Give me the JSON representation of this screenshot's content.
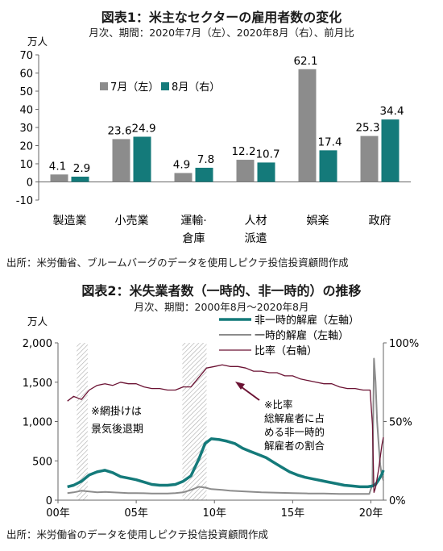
{
  "chart_data": [
    {
      "type": "bar",
      "title": "図表1：米主なセクターの雇用者数の変化",
      "subtitle": "月次、期間：2020年7月（左）、2020年8月（右）、前月比",
      "unit_label": "万人",
      "ylim": [
        -10,
        70
      ],
      "yticks": [
        -10,
        0,
        10,
        20,
        30,
        40,
        50,
        60,
        70
      ],
      "categories": [
        "製造業",
        "小売業",
        "運輸・倉庫",
        "人材派遣",
        "娯楽",
        "政府"
      ],
      "category_lines": [
        [
          "製造業"
        ],
        [
          "小売業"
        ],
        [
          "運輸·",
          "倉庫"
        ],
        [
          "人材",
          "派遣"
        ],
        [
          "娯楽"
        ],
        [
          "政府"
        ]
      ],
      "series": [
        {
          "name": "7月（左）",
          "color": "#8c8c8c",
          "values": [
            4.1,
            23.6,
            4.9,
            12.2,
            62.1,
            25.3
          ],
          "labels": [
            "4.1",
            "23.6",
            "4.9",
            "12.2",
            "62.1",
            "25.3"
          ]
        },
        {
          "name": "8月（右）",
          "color": "#147a7a",
          "values": [
            2.9,
            24.9,
            7.8,
            10.7,
            17.4,
            34.4
          ],
          "labels": [
            "2.9",
            "24.9",
            "7.8",
            "10.7",
            "17.4",
            "34.4"
          ]
        }
      ],
      "legend_placement": "top-left",
      "grid": false,
      "source": "出所：米労働省、ブルームバーグのデータを使用しピクテ投信投資顧問作成"
    },
    {
      "type": "line",
      "title": "図表2：米失業者数（一時的、非一時的）の推移",
      "subtitle": "月次、期間：2000年8月～2020年8月",
      "left_unit_label": "万人",
      "ylim_left": [
        0,
        2000
      ],
      "yticks_left": [
        "0",
        "500",
        "1,000",
        "1,500",
        "2,000"
      ],
      "yticks_left_values": [
        0,
        500,
        1000,
        1500,
        2000
      ],
      "ylim_right": [
        0,
        100
      ],
      "yticks_right": [
        "0%",
        "50%",
        "100%"
      ],
      "yticks_right_values": [
        0,
        50,
        100
      ],
      "xlim": [
        2000,
        2020.8
      ],
      "xticks": [
        "00年",
        "05年",
        "10年",
        "15年",
        "20年"
      ],
      "xticks_values": [
        2000,
        2005,
        2010,
        2015,
        2020
      ],
      "recessions": [
        [
          2001.2,
          2001.9
        ],
        [
          2007.95,
          2009.5
        ]
      ],
      "series": [
        {
          "name": "非一時的解雇（左軸）",
          "axis": "left",
          "color": "#147a7a",
          "width": 3.5,
          "points": [
            [
              2000.6,
              170
            ],
            [
              2001,
              190
            ],
            [
              2001.5,
              240
            ],
            [
              2002,
              320
            ],
            [
              2002.5,
              360
            ],
            [
              2003,
              380
            ],
            [
              2003.5,
              350
            ],
            [
              2004,
              300
            ],
            [
              2004.5,
              280
            ],
            [
              2005,
              260
            ],
            [
              2005.5,
              230
            ],
            [
              2006,
              200
            ],
            [
              2006.5,
              190
            ],
            [
              2007,
              190
            ],
            [
              2007.5,
              200
            ],
            [
              2008,
              240
            ],
            [
              2008.5,
              310
            ],
            [
              2009,
              520
            ],
            [
              2009.4,
              720
            ],
            [
              2009.8,
              780
            ],
            [
              2010.3,
              770
            ],
            [
              2010.8,
              750
            ],
            [
              2011.3,
              720
            ],
            [
              2011.8,
              660
            ],
            [
              2012.3,
              620
            ],
            [
              2012.8,
              580
            ],
            [
              2013.3,
              540
            ],
            [
              2013.8,
              480
            ],
            [
              2014.3,
              420
            ],
            [
              2014.8,
              360
            ],
            [
              2015.3,
              320
            ],
            [
              2015.8,
              290
            ],
            [
              2016.3,
              270
            ],
            [
              2016.8,
              250
            ],
            [
              2017.3,
              230
            ],
            [
              2017.8,
              210
            ],
            [
              2018.3,
              190
            ],
            [
              2018.8,
              180
            ],
            [
              2019.3,
              170
            ],
            [
              2019.8,
              170
            ],
            [
              2020.1,
              180
            ],
            [
              2020.3,
              200
            ],
            [
              2020.5,
              260
            ],
            [
              2020.7,
              330
            ],
            [
              2020.8,
              380
            ]
          ]
        },
        {
          "name": "一時的解雇（左軸）",
          "axis": "left",
          "color": "#8c8c8c",
          "width": 2,
          "points": [
            [
              2000.6,
              90
            ],
            [
              2001,
              100
            ],
            [
              2001.5,
              120
            ],
            [
              2002,
              110
            ],
            [
              2002.5,
              100
            ],
            [
              2003,
              105
            ],
            [
              2003.5,
              100
            ],
            [
              2004,
              95
            ],
            [
              2004.5,
              90
            ],
            [
              2005,
              90
            ],
            [
              2005.5,
              88
            ],
            [
              2006,
              85
            ],
            [
              2006.5,
              85
            ],
            [
              2007,
              85
            ],
            [
              2007.5,
              90
            ],
            [
              2008,
              100
            ],
            [
              2008.5,
              130
            ],
            [
              2009,
              170
            ],
            [
              2009.4,
              160
            ],
            [
              2009.8,
              140
            ],
            [
              2010.5,
              130
            ],
            [
              2011,
              120
            ],
            [
              2012,
              110
            ],
            [
              2013,
              100
            ],
            [
              2014,
              95
            ],
            [
              2015,
              90
            ],
            [
              2016,
              85
            ],
            [
              2017,
              85
            ],
            [
              2018,
              80
            ],
            [
              2019,
              80
            ],
            [
              2019.9,
              80
            ],
            [
              2020.1,
              200
            ],
            [
              2020.2,
              1800
            ],
            [
              2020.3,
              1500
            ],
            [
              2020.4,
              1000
            ],
            [
              2020.5,
              700
            ],
            [
              2020.6,
              450
            ],
            [
              2020.7,
              310
            ],
            [
              2020.8,
              250
            ]
          ]
        },
        {
          "name": "比率（右軸）",
          "axis": "right",
          "color": "#6b1233",
          "width": 1.3,
          "points": [
            [
              2000.6,
              63
            ],
            [
              2001,
              66
            ],
            [
              2001.5,
              64
            ],
            [
              2002,
              70
            ],
            [
              2002.5,
              73
            ],
            [
              2003,
              74
            ],
            [
              2003.5,
              73
            ],
            [
              2004,
              75
            ],
            [
              2004.5,
              74
            ],
            [
              2005,
              74
            ],
            [
              2005.5,
              72
            ],
            [
              2006,
              71
            ],
            [
              2006.5,
              71
            ],
            [
              2007,
              70
            ],
            [
              2007.5,
              70
            ],
            [
              2008,
              72
            ],
            [
              2008.5,
              72
            ],
            [
              2009,
              78
            ],
            [
              2009.5,
              84
            ],
            [
              2010,
              85
            ],
            [
              2010.5,
              86
            ],
            [
              2011,
              85
            ],
            [
              2011.5,
              85
            ],
            [
              2012,
              84
            ],
            [
              2012.5,
              82
            ],
            [
              2013,
              82
            ],
            [
              2013.5,
              81
            ],
            [
              2014,
              81
            ],
            [
              2014.5,
              79
            ],
            [
              2015,
              79
            ],
            [
              2015.5,
              77
            ],
            [
              2016,
              76
            ],
            [
              2016.5,
              75
            ],
            [
              2017,
              74
            ],
            [
              2017.5,
              74
            ],
            [
              2018,
              72
            ],
            [
              2018.5,
              71
            ],
            [
              2019,
              71
            ],
            [
              2019.5,
              70
            ],
            [
              2019.95,
              70
            ],
            [
              2020.1,
              48
            ],
            [
              2020.2,
              5
            ],
            [
              2020.3,
              8
            ],
            [
              2020.5,
              20
            ],
            [
              2020.7,
              35
            ],
            [
              2020.8,
              40
            ]
          ]
        }
      ],
      "annotations": {
        "recession_note": [
          "※網掛けは",
          "景気後退期"
        ],
        "ratio_note": [
          "※比率",
          "総解雇者に占",
          "める非一時的",
          "解雇者の割合"
        ]
      },
      "legend_placement": "top-center",
      "grid": false,
      "source": "出所：米労働省のデータを使用しピクテ投信投資顧問作成"
    }
  ]
}
